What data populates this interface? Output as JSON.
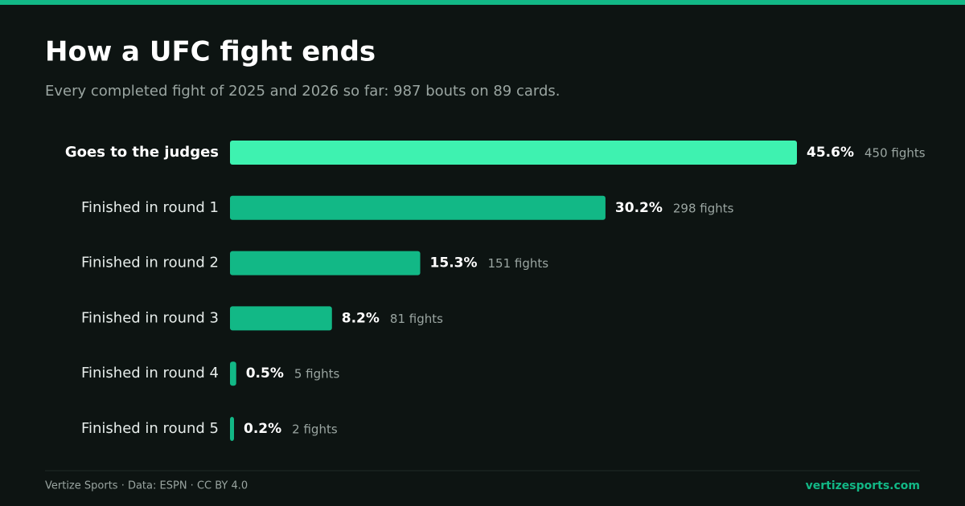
{
  "chart_data": {
    "type": "bar",
    "orientation": "horizontal",
    "title": "How a UFC fight ends",
    "subtitle": "Every completed fight of 2025 and 2026 so far: 987 bouts on 89 cards.",
    "categories": [
      "Goes to the judges",
      "Finished in round 1",
      "Finished in round 2",
      "Finished in round 3",
      "Finished in round 4",
      "Finished in round 5"
    ],
    "values": [
      45.6,
      30.2,
      15.3,
      8.2,
      0.5,
      0.2
    ],
    "value_labels": [
      "45.6%",
      "30.2%",
      "15.3%",
      "8.2%",
      "0.5%",
      "0.2%"
    ],
    "count_labels": [
      "450 fights",
      "298 fights",
      "151 fights",
      "81 fights",
      "5 fights",
      "2 fights"
    ],
    "colors": [
      "#3ef2b0",
      "#12b886",
      "#12b886",
      "#12b886",
      "#12b886",
      "#12b886"
    ],
    "highlight": 0,
    "footer": {
      "source": "Vertize Sports · Data: ESPN · CC BY 4.0",
      "site": "vertizesports.com"
    }
  }
}
